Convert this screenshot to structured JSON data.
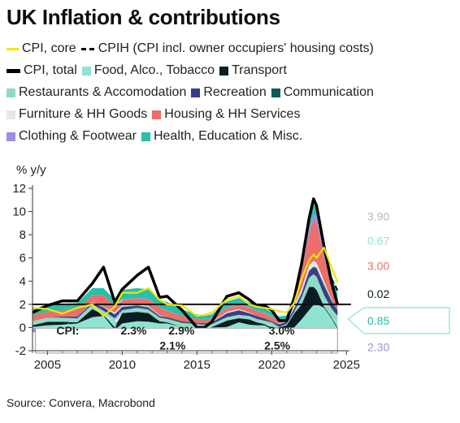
{
  "title": "UK Inflation & contributions",
  "source": "Source: Convera, Macrobond",
  "colors": {
    "cpi_core": "#f2e600",
    "cpih": "#000000",
    "cpi_total": "#000000",
    "food": "#8ee3d3",
    "transport": "#0b1d24",
    "restaurants": "#8fdcc4",
    "recreation": "#3b3a8c",
    "communication": "#0f5a5a",
    "furniture": "#e6e6e6",
    "housing": "#ee6e6a",
    "clothing": "#9a8fe0",
    "health": "#27c0a8"
  },
  "legend": [
    [
      {
        "label": "CPI, core",
        "kind": "line",
        "color_key": "cpi_core"
      },
      {
        "label": "CPIH (CPI incl. owner occupiers' housing costs)",
        "kind": "dash",
        "color_key": "cpih"
      }
    ],
    [
      {
        "label": "CPI, total",
        "kind": "thick",
        "color_key": "cpi_total"
      },
      {
        "label": "Food, Alco., Tobacco",
        "kind": "box",
        "color_key": "food"
      },
      {
        "label": "Transport",
        "kind": "box",
        "color_key": "transport"
      }
    ],
    [
      {
        "label": "Restaurants & Accomodation",
        "kind": "box",
        "color_key": "restaurants"
      },
      {
        "label": "Recreation",
        "kind": "box",
        "color_key": "recreation"
      },
      {
        "label": "Communication",
        "kind": "box",
        "color_key": "communication"
      }
    ],
    [
      {
        "label": "Furniture & HH Goods",
        "kind": "box",
        "color_key": "furniture"
      },
      {
        "label": "Housing & HH Services",
        "kind": "box",
        "color_key": "housing"
      }
    ],
    [
      {
        "label": "Clothing & Footwear",
        "kind": "box",
        "color_key": "clothing"
      },
      {
        "label": "Health, Education & Misc.",
        "kind": "box",
        "color_key": "health"
      }
    ]
  ],
  "chart_data": {
    "type": "area",
    "ylabel": "% y/y",
    "ylim": [
      -2,
      12
    ],
    "xlim": [
      2004,
      2025.2
    ],
    "yticks": [
      -2,
      0,
      2,
      4,
      6,
      8,
      10,
      12
    ],
    "xticks": [
      2005,
      2010,
      2015,
      2020,
      2025
    ],
    "grid": false,
    "target_line": 2,
    "x": [
      2004,
      2005,
      2006,
      2007,
      2008,
      2008.75,
      2009.5,
      2010,
      2011,
      2011.75,
      2012.5,
      2013,
      2014,
      2015,
      2015.5,
      2016,
      2017,
      2017.8,
      2018.5,
      2019,
      2019.5,
      2020,
      2020.5,
      2021,
      2021.5,
      2022,
      2022.5,
      2022.8,
      2023,
      2023.5,
      2024,
      2024.4
    ],
    "series": [
      {
        "name": "Food, Alco., Tobacco",
        "key": "food",
        "values": [
          0.05,
          0.2,
          0.25,
          0.35,
          0.9,
          1.0,
          0.55,
          0.35,
          0.55,
          0.5,
          0.35,
          0.35,
          0.05,
          -0.25,
          -0.3,
          -0.2,
          0.05,
          0.45,
          0.25,
          0.2,
          0.2,
          0.15,
          0.0,
          -0.1,
          0.0,
          0.7,
          1.5,
          1.95,
          2.05,
          1.7,
          0.8,
          0.35
        ]
      },
      {
        "name": "Transport",
        "key": "transport",
        "values": [
          0.15,
          0.3,
          0.25,
          0.1,
          0.7,
          0.1,
          -0.2,
          0.9,
          0.8,
          0.75,
          0.2,
          0.1,
          0.0,
          -0.45,
          -0.4,
          0.05,
          0.55,
          0.35,
          0.45,
          0.25,
          0.1,
          -0.1,
          -0.25,
          0.2,
          1.2,
          1.3,
          2.0,
          1.55,
          1.2,
          0.1,
          0.1,
          -0.1
        ]
      },
      {
        "name": "Restaurants & Accomodation",
        "key": "restaurants",
        "values": [
          0.35,
          0.35,
          0.35,
          0.35,
          0.4,
          0.35,
          0.25,
          0.25,
          0.35,
          0.3,
          0.3,
          0.3,
          0.35,
          0.3,
          0.25,
          0.25,
          0.3,
          0.3,
          0.3,
          0.3,
          0.3,
          0.3,
          0.05,
          0.1,
          0.15,
          0.6,
          0.8,
          1.1,
          1.15,
          1.0,
          0.75,
          0.65
        ]
      },
      {
        "name": "Recreation",
        "key": "recreation",
        "values": [
          0.0,
          0.0,
          0.1,
          0.15,
          0.1,
          0.25,
          0.3,
          0.3,
          0.15,
          0.1,
          0.1,
          0.05,
          0.05,
          0.05,
          0.1,
          0.1,
          0.3,
          0.35,
          0.2,
          0.2,
          0.15,
          0.1,
          0.2,
          0.15,
          0.25,
          0.35,
          0.55,
          0.55,
          0.6,
          0.65,
          0.55,
          0.4
        ]
      },
      {
        "name": "Communication",
        "key": "communication",
        "values": [
          0.0,
          0.0,
          0.0,
          0.0,
          0.05,
          0.05,
          0.05,
          0.0,
          0.05,
          0.1,
          0.05,
          0.1,
          0.1,
          0.05,
          0.05,
          0.05,
          0.05,
          0.05,
          0.05,
          0.05,
          0.05,
          0.0,
          0.05,
          0.05,
          0.05,
          0.05,
          0.05,
          0.1,
          0.15,
          0.25,
          0.15,
          0.1
        ]
      },
      {
        "name": "Furniture & HH Goods",
        "key": "furniture",
        "values": [
          -0.05,
          -0.1,
          -0.05,
          0.0,
          0.05,
          0.05,
          0.15,
          0.15,
          0.1,
          0.1,
          0.05,
          0.0,
          0.0,
          0.0,
          0.0,
          0.05,
          0.1,
          0.1,
          0.05,
          0.0,
          0.0,
          0.0,
          0.05,
          0.05,
          0.2,
          0.35,
          0.45,
          0.5,
          0.45,
          0.3,
          0.1,
          0.0
        ]
      },
      {
        "name": "Housing & HH Services",
        "key": "housing",
        "values": [
          0.5,
          0.5,
          0.55,
          0.6,
          0.6,
          1.0,
          0.5,
          0.4,
          0.5,
          0.6,
          0.65,
          0.55,
          0.45,
          0.35,
          0.3,
          0.3,
          0.3,
          0.3,
          0.4,
          0.45,
          0.45,
          0.35,
          0.25,
          0.1,
          0.55,
          1.5,
          2.7,
          3.5,
          3.5,
          2.1,
          1.0,
          0.55
        ]
      },
      {
        "name": "Clothing & Footwear",
        "key": "clothing",
        "values": [
          -0.35,
          -0.35,
          -0.3,
          -0.3,
          -0.3,
          -0.2,
          -0.2,
          0.1,
          0.05,
          0.05,
          0.0,
          0.05,
          0.0,
          0.0,
          0.0,
          0.0,
          0.1,
          0.1,
          0.05,
          0.0,
          0.05,
          0.05,
          0.0,
          0.05,
          0.1,
          0.3,
          0.45,
          0.5,
          0.5,
          0.4,
          0.25,
          0.15
        ]
      },
      {
        "name": "Health, Education & Misc.",
        "key": "health",
        "values": [
          0.6,
          0.6,
          0.55,
          0.55,
          0.6,
          0.6,
          0.6,
          0.8,
          0.85,
          0.8,
          0.7,
          0.7,
          0.55,
          0.4,
          0.3,
          0.35,
          0.5,
          0.55,
          0.45,
          0.45,
          0.4,
          0.35,
          0.35,
          0.35,
          0.45,
          0.55,
          0.7,
          0.85,
          0.85,
          0.9,
          0.85,
          0.75
        ]
      },
      {
        "name": "CPI, total",
        "key": "cpi_total",
        "line": true,
        "values": [
          1.3,
          1.9,
          2.3,
          2.3,
          3.8,
          5.2,
          2.2,
          3.3,
          4.5,
          5.2,
          2.6,
          2.7,
          1.5,
          0.0,
          0.0,
          0.5,
          2.7,
          3.0,
          2.4,
          1.9,
          1.9,
          1.5,
          0.6,
          0.6,
          2.5,
          5.5,
          9.4,
          11.1,
          10.5,
          7.0,
          3.9,
          2.0
        ]
      },
      {
        "name": "CPI, core",
        "key": "cpi_core",
        "line": true,
        "values": [
          1.7,
          1.6,
          1.2,
          1.7,
          2.0,
          1.0,
          1.8,
          3.0,
          3.0,
          3.4,
          2.4,
          2.0,
          1.9,
          1.0,
          1.1,
          1.3,
          2.4,
          2.7,
          2.0,
          1.8,
          1.7,
          1.6,
          1.4,
          1.3,
          2.1,
          4.2,
          5.8,
          6.3,
          6.0,
          6.9,
          5.2,
          3.9
        ]
      },
      {
        "name": "CPIH (CPI incl. owner occupiers' housing costs)",
        "key": "cpih",
        "line": true,
        "dashed": true,
        "values": [
          null,
          null,
          null,
          null,
          null,
          null,
          null,
          null,
          null,
          null,
          null,
          null,
          null,
          null,
          null,
          null,
          null,
          null,
          null,
          null,
          null,
          null,
          null,
          null,
          null,
          null,
          null,
          null,
          null,
          null,
          4.2,
          3.2
        ]
      }
    ],
    "period_labels": [
      {
        "label": "CPI:",
        "x": 2005.6,
        "y": -0.6
      },
      {
        "label": "2.3%",
        "x": 2009.9,
        "y": -0.6
      },
      {
        "label": "2.9%",
        "x": 2013.1,
        "y": -0.6
      },
      {
        "label": "2.1%",
        "x": 2012.5,
        "y": -1.9
      },
      {
        "label": "3.0%",
        "x": 2019.8,
        "y": -0.6
      },
      {
        "label": "2.5%",
        "x": 2019.5,
        "y": -1.9
      }
    ],
    "right_labels": [
      {
        "text": "3.90",
        "color_key": "furniture_label",
        "y": 9.6
      },
      {
        "text": "0.67",
        "color_key": "food",
        "y": 7.5
      },
      {
        "text": "3.00",
        "color_key": "housing",
        "y": 5.3
      },
      {
        "text": "0.02",
        "color_key": "transport",
        "y": 2.9
      },
      {
        "text": "0.85",
        "color_key": "health",
        "y": 0.6,
        "boxed": true
      },
      {
        "text": "2.30",
        "color_key": "clothing",
        "y": -1.7
      }
    ],
    "right_label_colors": {
      "furniture_label": "#b9b9b9"
    }
  }
}
